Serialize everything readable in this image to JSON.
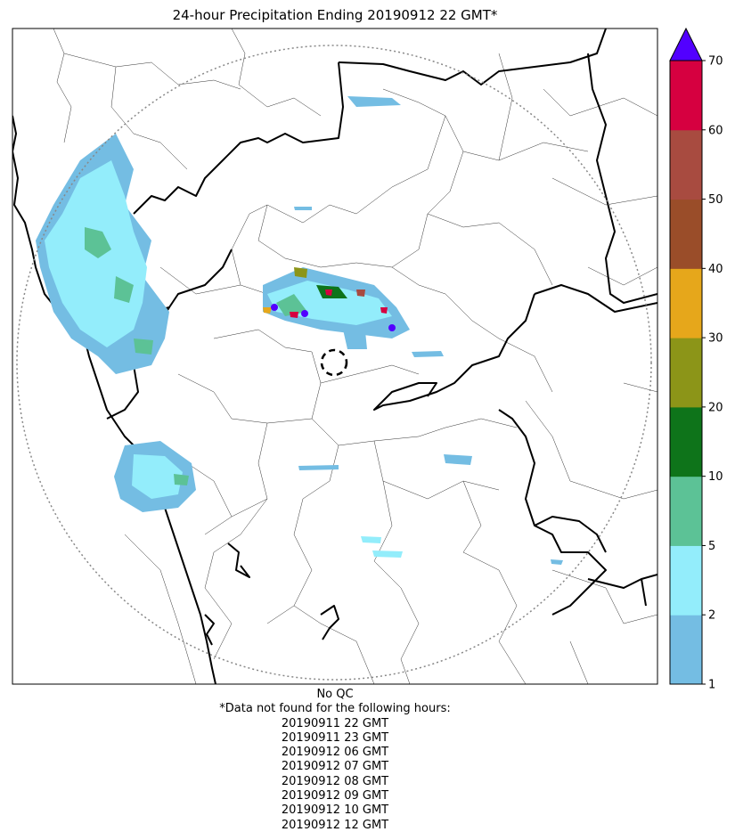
{
  "title": "24-hour Precipitation Ending 20190912 22 GMT*",
  "colorbar": {
    "ticks": [
      "1",
      "2",
      "5",
      "10",
      "20",
      "30",
      "40",
      "50",
      "60",
      "70"
    ],
    "bins": [
      {
        "color": "#74bde3"
      },
      {
        "color": "#93edfb"
      },
      {
        "color": "#5cc296"
      },
      {
        "color": "#0e741a"
      },
      {
        "color": "#8c9518"
      },
      {
        "color": "#e6a71b"
      },
      {
        "color": "#9a4d29"
      },
      {
        "color": "#a84b40"
      },
      {
        "color": "#d60040"
      }
    ],
    "extend_color": "#5200ff"
  },
  "footer": {
    "qc": "No QC",
    "missing_note": "*Data not found for the following hours:",
    "hours": [
      "20190911 22 GMT",
      "20190911 23 GMT",
      "20190912 06 GMT",
      "20190912 07 GMT",
      "20190912 08 GMT",
      "20190912 09 GMT",
      "20190912 10 GMT",
      "20190912 12 GMT"
    ]
  }
}
